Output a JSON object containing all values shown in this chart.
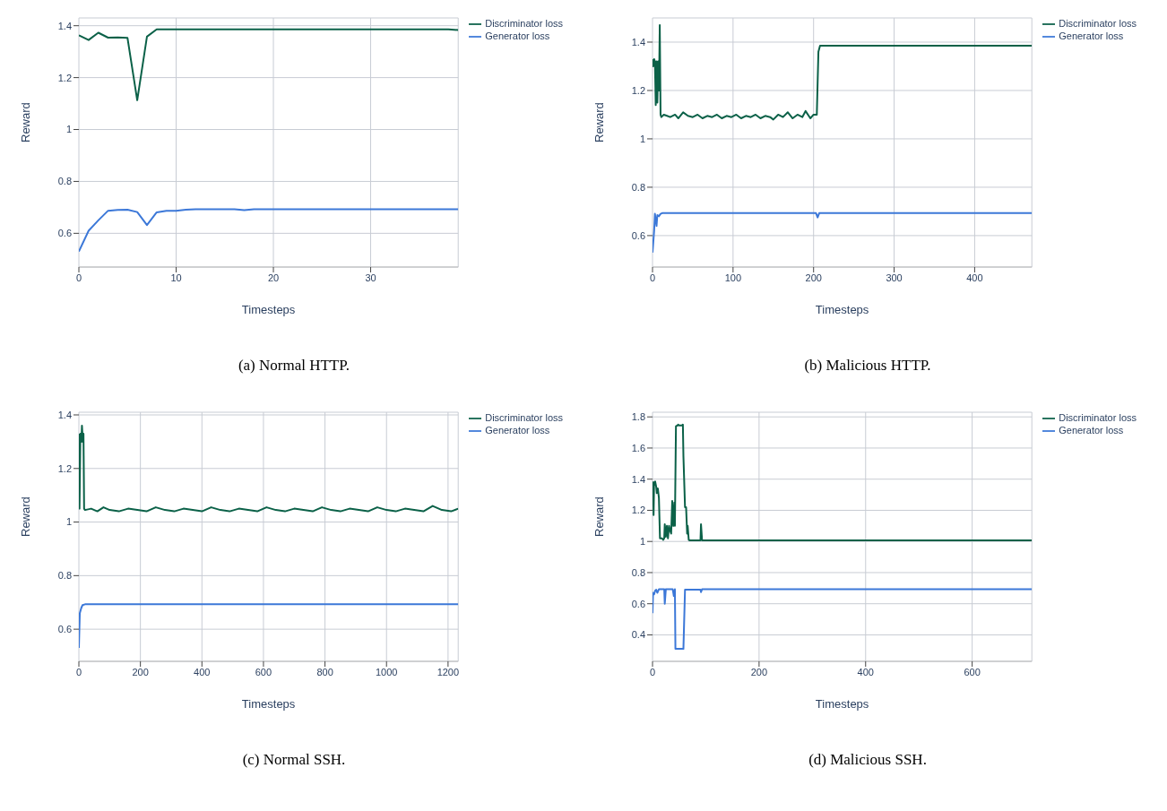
{
  "chart_data": [
    {
      "type": "line",
      "title": "(a) Normal HTTP.",
      "xlabel": "Timesteps",
      "ylabel": "Reward",
      "legend": "top right",
      "grid": true,
      "xlim": [
        0,
        39
      ],
      "xticks": [
        0,
        10,
        20,
        30
      ],
      "ylim": [
        0.47,
        1.43
      ],
      "yticks": [
        0.6,
        0.8,
        1,
        1.2,
        1.4
      ],
      "series": [
        {
          "name": "Generator loss",
          "color": "#3c78d8",
          "x": [
            0,
            1,
            2,
            3,
            4,
            5,
            6,
            7,
            8,
            9,
            10,
            11,
            12,
            16,
            17,
            18,
            39
          ],
          "values": [
            0.53,
            0.61,
            0.65,
            0.687,
            0.69,
            0.691,
            0.682,
            0.632,
            0.681,
            0.687,
            0.687,
            0.691,
            0.693,
            0.693,
            0.689,
            0.693,
            0.693
          ]
        },
        {
          "name": "Discriminator loss",
          "color": "#0b6148",
          "x": [
            0,
            1,
            2,
            3,
            4,
            5,
            6,
            7,
            8,
            38,
            39
          ],
          "values": [
            1.363,
            1.345,
            1.373,
            1.354,
            1.355,
            1.353,
            1.113,
            1.358,
            1.386,
            1.386,
            1.383
          ]
        }
      ]
    },
    {
      "type": "line",
      "title": "(b) Malicious HTTP.",
      "xlabel": "Timesteps",
      "ylabel": "Reward",
      "legend": "top right",
      "grid": true,
      "xlim": [
        0,
        471
      ],
      "xticks": [
        0,
        100,
        200,
        300,
        400
      ],
      "ylim": [
        0.47,
        1.5
      ],
      "yticks": [
        0.6,
        0.8,
        1,
        1.2,
        1.4
      ],
      "series": [
        {
          "name": "Generator loss",
          "color": "#3c78d8",
          "x": [
            0,
            2,
            3,
            5,
            6,
            8,
            10,
            12,
            203,
            205,
            207,
            471
          ],
          "values": [
            0.53,
            0.62,
            0.69,
            0.64,
            0.685,
            0.68,
            0.69,
            0.693,
            0.693,
            0.675,
            0.693,
            0.693
          ]
        },
        {
          "name": "Discriminator loss",
          "color": "#0b6148",
          "x": [
            0,
            1,
            2,
            3,
            4,
            5,
            6,
            7,
            8,
            9,
            10,
            11,
            14,
            18,
            22,
            28,
            32,
            38,
            44,
            50,
            56,
            62,
            68,
            74,
            80,
            86,
            92,
            98,
            104,
            110,
            116,
            122,
            128,
            134,
            140,
            146,
            150,
            156,
            162,
            168,
            174,
            180,
            186,
            190,
            196,
            200,
            204,
            206,
            208,
            471
          ],
          "values": [
            1.33,
            1.3,
            1.33,
            1.32,
            1.14,
            1.32,
            1.15,
            1.32,
            1.2,
            1.47,
            1.1,
            1.09,
            1.1,
            1.095,
            1.09,
            1.1,
            1.085,
            1.11,
            1.095,
            1.09,
            1.1,
            1.085,
            1.095,
            1.09,
            1.1,
            1.085,
            1.095,
            1.09,
            1.1,
            1.085,
            1.095,
            1.09,
            1.1,
            1.085,
            1.095,
            1.09,
            1.08,
            1.1,
            1.09,
            1.11,
            1.085,
            1.1,
            1.09,
            1.115,
            1.085,
            1.1,
            1.1,
            1.36,
            1.385,
            1.385
          ]
        }
      ]
    },
    {
      "type": "line",
      "title": "(c) Normal SSH.",
      "xlabel": "Timesteps",
      "ylabel": "Reward",
      "legend": "top right",
      "grid": true,
      "xlim": [
        0,
        1233
      ],
      "xticks": [
        0,
        200,
        400,
        600,
        800,
        1000,
        1200
      ],
      "ylim": [
        0.48,
        1.41
      ],
      "yticks": [
        0.6,
        0.8,
        1,
        1.2,
        1.4
      ],
      "series": [
        {
          "name": "Generator loss",
          "color": "#3c78d8",
          "x": [
            0,
            3,
            8,
            12,
            20,
            1233
          ],
          "values": [
            0.53,
            0.66,
            0.68,
            0.69,
            0.693,
            0.693
          ]
        },
        {
          "name": "Discriminator loss",
          "color": "#0b6148",
          "x": [
            0,
            2,
            5,
            8,
            10,
            13,
            15,
            17,
            20,
            40,
            60,
            80,
            100,
            130,
            160,
            190,
            220,
            250,
            280,
            310,
            340,
            370,
            400,
            430,
            460,
            490,
            520,
            550,
            580,
            610,
            640,
            670,
            700,
            730,
            760,
            790,
            820,
            850,
            880,
            910,
            940,
            970,
            1000,
            1030,
            1060,
            1090,
            1120,
            1150,
            1180,
            1210,
            1233
          ],
          "values": [
            1.33,
            1.05,
            1.33,
            1.3,
            1.36,
            1.3,
            1.33,
            1.05,
            1.045,
            1.05,
            1.04,
            1.055,
            1.045,
            1.04,
            1.05,
            1.045,
            1.04,
            1.055,
            1.045,
            1.04,
            1.05,
            1.045,
            1.04,
            1.055,
            1.045,
            1.04,
            1.05,
            1.045,
            1.04,
            1.055,
            1.045,
            1.04,
            1.05,
            1.045,
            1.04,
            1.055,
            1.045,
            1.04,
            1.05,
            1.045,
            1.04,
            1.055,
            1.045,
            1.04,
            1.05,
            1.045,
            1.04,
            1.06,
            1.045,
            1.04,
            1.05
          ]
        }
      ]
    },
    {
      "type": "line",
      "title": "(d) Malicious SSH.",
      "xlabel": "Timesteps",
      "ylabel": "Reward",
      "legend": "top right",
      "grid": true,
      "xlim": [
        0,
        712
      ],
      "xticks": [
        0,
        200,
        400,
        600
      ],
      "ylim": [
        0.23,
        1.83
      ],
      "yticks": [
        0.4,
        0.6,
        0.8,
        1,
        1.2,
        1.4,
        1.6,
        1.8
      ],
      "series": [
        {
          "name": "Generator loss",
          "color": "#3c78d8",
          "x": [
            0,
            1,
            3,
            5,
            7,
            9,
            12,
            22,
            23,
            25,
            38,
            40,
            42,
            43,
            58,
            61,
            70,
            90,
            91,
            93,
            712
          ],
          "values": [
            0.54,
            0.67,
            0.66,
            0.685,
            0.69,
            0.67,
            0.693,
            0.693,
            0.6,
            0.693,
            0.693,
            0.65,
            0.693,
            0.31,
            0.31,
            0.69,
            0.69,
            0.69,
            0.675,
            0.693,
            0.693
          ]
        },
        {
          "name": "Discriminator loss",
          "color": "#0b6148",
          "x": [
            0,
            1,
            2,
            3,
            5,
            7,
            8,
            10,
            12,
            14,
            18,
            20,
            22,
            23,
            25,
            27,
            29,
            31,
            33,
            35,
            37,
            39,
            41,
            42,
            44,
            47,
            48,
            50,
            55,
            57,
            58,
            61,
            63,
            65,
            66,
            68,
            70,
            90,
            91,
            93,
            712
          ],
          "values": [
            1.31,
            1.38,
            1.17,
            1.38,
            1.385,
            1.35,
            1.31,
            1.34,
            1.28,
            1.02,
            1.02,
            1.01,
            1.02,
            1.11,
            1.03,
            1.1,
            1.02,
            1.1,
            1.07,
            1.05,
            1.26,
            1.1,
            1.25,
            1.1,
            1.74,
            1.745,
            1.75,
            1.745,
            1.745,
            1.75,
            1.55,
            1.22,
            1.22,
            1.05,
            1.1,
            1.01,
            1.007,
            1.007,
            1.11,
            1.007,
            1.007
          ]
        }
      ]
    }
  ]
}
